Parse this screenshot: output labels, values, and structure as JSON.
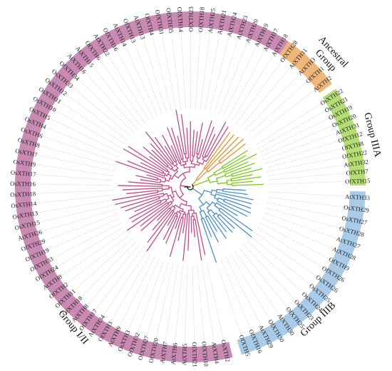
{
  "groups": [
    {
      "id": "ancestral",
      "label_lines": [
        "Ancestral",
        "Group"
      ],
      "color": "#f0b77a",
      "branch_color": "#e8902c",
      "leaves": [
        "OfXTH28",
        "AtXTH11",
        "AtXTH3",
        "OfXTH1",
        "AtXTH2"
      ]
    },
    {
      "id": "g3a",
      "label_lines": [
        "Group IIIA"
      ],
      "color": "#b4dd73",
      "branch_color": "#7cc81e",
      "leaves": [
        "OsXTH22",
        "OsXTH21",
        "OsXTH19",
        "OsXTH20",
        "AtXTH31",
        "OfXTH12",
        "OfXTH8",
        "OfXTH22",
        "AtXTH32",
        "OfXTH7",
        "OfXTH15"
      ]
    },
    {
      "id": "g3b",
      "label_lines": [
        "Group IIIB"
      ],
      "color": "#a9cbe7",
      "branch_color": "#4a90cc",
      "leaves": [
        "AtXTH33",
        "OsXTH29",
        "OsXTH27",
        "OsXTH28",
        "AtXTH27",
        "AtXTH28",
        "OfXTH9",
        "OfXTH26",
        "OsXTH26",
        "OsXTH25",
        "OsXTH24",
        "OsXTH23",
        "OfXTH25",
        "AtXTH30",
        "OfXTH30",
        "AtXTH29",
        "OfXTH16",
        "OfXTH5"
      ]
    },
    {
      "id": "g12",
      "label_lines": [
        "Group I/II"
      ],
      "color": "#c98bb4",
      "branch_color": "#c04c8a",
      "leaves": [
        "OsXTH2",
        "AtXTH4",
        "OfXTH10",
        "OfXTH21",
        "AtXTH5",
        "AtXTH6",
        "AtXTH7",
        "OfXTH20",
        "OfXTH27",
        "OfXTH32",
        "OsXTH3",
        "AtXTH9",
        "OfXTH3",
        "AtXTH34",
        "OfXTH17",
        "AtXTH8",
        "OfXTH18",
        "OfXTH11",
        "OfXTH2",
        "AtXTH8",
        "OfXTH24",
        "OfXTH33",
        "OfXTH19",
        "OfXTH29",
        "AtXTH26",
        "OsXTH15",
        "OsXTH13",
        "OsXTH14",
        "OsXTH18",
        "OsXTH16",
        "OsXTH17",
        "OsXTH9",
        "OsXTH7",
        "OsXTH8",
        "OsXTH6",
        "OsXTH4",
        "OsXTH5",
        "OsXTH10",
        "OsXTH11",
        "OsXTH12",
        "OsXTH33",
        "OfXTH34",
        "AtXTH16",
        "AtXTH15",
        "OfXTH6",
        "AtXTH22",
        "OfXTH16",
        "AtXTH14",
        "OfXTH13",
        "AtXTH13",
        "OfXTH4",
        "OfXTH31",
        "OfXTH35",
        "OfXTH14",
        "OfXTH23",
        "OfXTH18",
        "AtXTH25",
        "AtXTH21",
        "AtXTH24",
        "AtXTH23",
        "AtXTH20",
        "AtXTH19",
        "AtXTH17",
        "AtXTH18"
      ]
    }
  ]
}
